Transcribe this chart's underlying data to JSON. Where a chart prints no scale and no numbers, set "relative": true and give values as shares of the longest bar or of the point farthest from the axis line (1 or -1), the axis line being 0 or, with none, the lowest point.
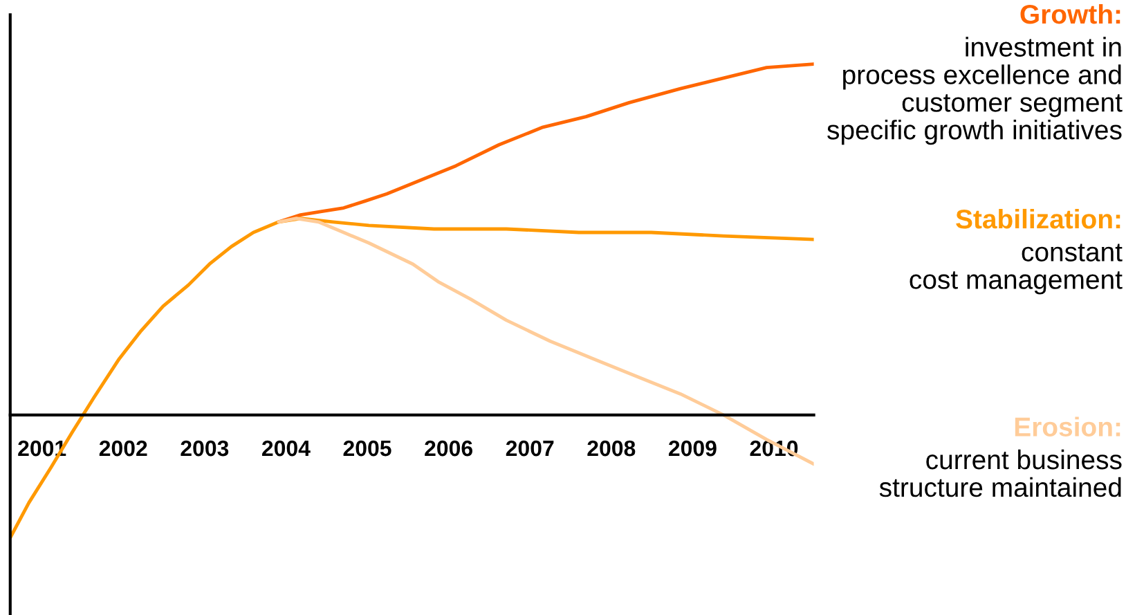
{
  "chart_data": {
    "type": "line",
    "relative": true,
    "xlim": [
      2000.61,
      2010.49
    ],
    "xticks": [
      2001,
      2002,
      2003,
      2004,
      2005,
      2006,
      2007,
      2008,
      2009,
      2010
    ],
    "series": [
      {
        "name": "Growth:",
        "color": "#ff6600",
        "x": [
          2003.91,
          2004.18,
          2004.44,
          2004.71,
          2004.98,
          2005.24,
          2005.56,
          2006.09,
          2006.62,
          2007.16,
          2007.69,
          2008.22,
          2008.85,
          2009.38,
          2009.91,
          2010.49
        ],
        "values": [
          0.55,
          0.57,
          0.58,
          0.59,
          0.61,
          0.63,
          0.66,
          0.71,
          0.77,
          0.82,
          0.85,
          0.89,
          0.93,
          0.96,
          0.99,
          1
        ]
      },
      {
        "name": "Stabilization:",
        "color": "#ff9900",
        "x": [
          2000.61,
          2000.84,
          2001.11,
          2001.37,
          2001.64,
          2001.95,
          2002.22,
          2002.49,
          2002.8,
          2003.06,
          2003.33,
          2003.6,
          2003.91,
          2004.18,
          2004.58,
          2005.02,
          2005.82,
          2006.71,
          2007.6,
          2008.49,
          2009.38,
          2010.49
        ],
        "values": [
          -0.35,
          -0.25,
          -0.15,
          -0.05,
          0.05,
          0.16,
          0.24,
          0.31,
          0.37,
          0.43,
          0.48,
          0.52,
          0.55,
          0.56,
          0.55,
          0.54,
          0.53,
          0.53,
          0.52,
          0.52,
          0.51,
          0.5
        ]
      },
      {
        "name": "Erosion:",
        "color": "#ffcc99",
        "x": [
          2003.91,
          2004.13,
          2004.4,
          2004.71,
          2005.02,
          2005.29,
          2005.56,
          2005.87,
          2006.27,
          2006.71,
          2007.25,
          2007.78,
          2008.31,
          2008.85,
          2009.38,
          2009.91,
          2010.49
        ],
        "values": [
          0.55,
          0.56,
          0.55,
          0.52,
          0.49,
          0.46,
          0.43,
          0.38,
          0.33,
          0.27,
          0.21,
          0.16,
          0.11,
          0.06,
          0.0,
          -0.07,
          -0.14
        ]
      }
    ],
    "annotations": [
      "investment in\nprocess excellence and\ncustomer segment\nspecific growth initiatives",
      "constant\ncost management",
      "current business\nstructure maintained"
    ],
    "line_style": "solid",
    "grid": false,
    "legend": false
  }
}
